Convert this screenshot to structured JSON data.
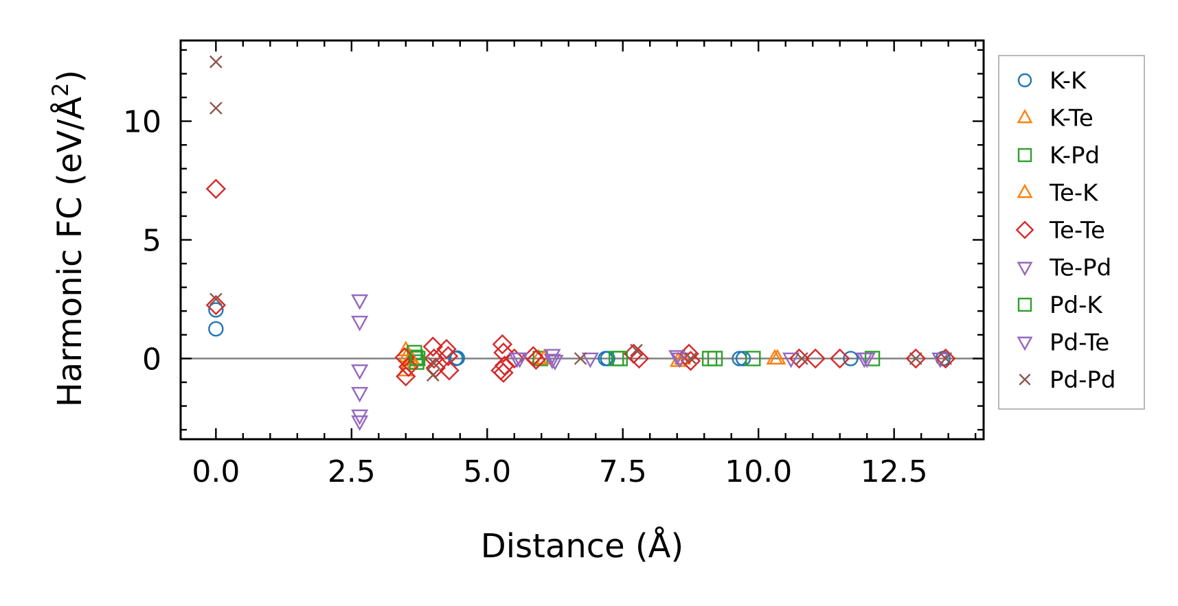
{
  "chart_data": {
    "type": "scatter",
    "title": "",
    "xlabel": "Distance (Å)",
    "ylabel_main": "Harmonic FC (eV/Å",
    "ylabel_sup": "2",
    "ylabel_close": ")",
    "xlim": [
      -0.65,
      14.15
    ],
    "ylim": [
      -3.4,
      13.4
    ],
    "xticks": [
      0.0,
      2.5,
      5.0,
      7.5,
      10.0,
      12.5
    ],
    "xtick_labels": [
      "0.0",
      "2.5",
      "5.0",
      "7.5",
      "10.0",
      "12.5"
    ],
    "yticks": [
      0,
      5,
      10
    ],
    "ytick_labels": [
      "0",
      "5",
      "10"
    ],
    "zero_line": 0,
    "legend_position": "outside-right",
    "series": [
      {
        "name": "K-K",
        "color": "#1f77b4",
        "marker": "circle",
        "points": [
          [
            0.0,
            2.05
          ],
          [
            0.0,
            1.25
          ],
          [
            4.42,
            0.0
          ],
          [
            4.45,
            0.02
          ],
          [
            7.18,
            0.0
          ],
          [
            7.22,
            0.0
          ],
          [
            9.65,
            0.0
          ],
          [
            9.72,
            0.0
          ],
          [
            11.7,
            0.0
          ],
          [
            13.4,
            0.0
          ]
        ]
      },
      {
        "name": "K-Te",
        "color": "#ff7f0e",
        "marker": "triangle-up",
        "points": [
          [
            3.5,
            0.35
          ],
          [
            3.52,
            0.1
          ],
          [
            3.55,
            -0.2
          ],
          [
            3.5,
            -0.5
          ],
          [
            3.6,
            0.0
          ],
          [
            5.95,
            0.0
          ],
          [
            8.52,
            -0.1
          ],
          [
            10.3,
            0.0
          ]
        ]
      },
      {
        "name": "K-Pd",
        "color": "#2ca02c",
        "marker": "square",
        "points": [
          [
            3.68,
            0.05
          ],
          [
            3.7,
            -0.15
          ],
          [
            3.66,
            0.25
          ],
          [
            5.98,
            0.0
          ],
          [
            7.38,
            0.0
          ],
          [
            9.1,
            0.0
          ],
          [
            9.9,
            0.0
          ],
          [
            12.1,
            0.0
          ]
        ]
      },
      {
        "name": "Te-K",
        "color": "#ff7f0e",
        "marker": "triangle-up",
        "points": [
          [
            3.58,
            0.0
          ],
          [
            6.05,
            0.0
          ],
          [
            8.6,
            0.0
          ],
          [
            10.35,
            0.0
          ]
        ]
      },
      {
        "name": "Te-Te",
        "color": "#d62728",
        "marker": "diamond",
        "points": [
          [
            0.0,
            7.15
          ],
          [
            0.0,
            2.25
          ],
          [
            3.48,
            0.05
          ],
          [
            3.5,
            -0.75
          ],
          [
            3.55,
            -0.35
          ],
          [
            4.0,
            0.5
          ],
          [
            4.02,
            0.0
          ],
          [
            4.05,
            -0.4
          ],
          [
            4.25,
            0.4
          ],
          [
            4.3,
            -0.5
          ],
          [
            4.28,
            0.1
          ],
          [
            5.28,
            0.6
          ],
          [
            5.3,
            0.25
          ],
          [
            5.25,
            -0.5
          ],
          [
            5.3,
            -0.6
          ],
          [
            5.32,
            -0.3
          ],
          [
            5.5,
            0.0
          ],
          [
            5.85,
            0.1
          ],
          [
            5.9,
            -0.05
          ],
          [
            7.7,
            0.2
          ],
          [
            7.8,
            0.0
          ],
          [
            8.72,
            0.2
          ],
          [
            8.75,
            -0.1
          ],
          [
            10.75,
            0.0
          ],
          [
            11.05,
            0.0
          ],
          [
            11.5,
            0.0
          ],
          [
            12.9,
            0.0
          ],
          [
            13.45,
            0.0
          ]
        ]
      },
      {
        "name": "Te-Pd",
        "color": "#9467bd",
        "marker": "triangle-down",
        "points": [
          [
            2.65,
            2.45
          ],
          [
            2.65,
            1.55
          ],
          [
            2.65,
            -0.5
          ],
          [
            2.65,
            -1.45
          ],
          [
            2.65,
            -2.4
          ],
          [
            2.65,
            -2.65
          ],
          [
            5.55,
            0.0
          ],
          [
            6.2,
            0.15
          ],
          [
            6.25,
            -0.1
          ],
          [
            8.5,
            0.1
          ],
          [
            11.95,
            0.0
          ],
          [
            13.35,
            0.0
          ]
        ]
      },
      {
        "name": "Pd-K",
        "color": "#2ca02c",
        "marker": "square",
        "points": [
          [
            3.72,
            0.0
          ],
          [
            7.45,
            0.0
          ],
          [
            9.2,
            0.0
          ]
        ]
      },
      {
        "name": "Pd-Te",
        "color": "#9467bd",
        "marker": "triangle-down",
        "points": [
          [
            5.6,
            0.0
          ],
          [
            6.2,
            -0.05
          ],
          [
            6.9,
            0.0
          ],
          [
            8.55,
            0.0
          ],
          [
            10.6,
            0.0
          ],
          [
            12.0,
            0.0
          ]
        ]
      },
      {
        "name": "Pd-Pd",
        "color": "#8c564b",
        "marker": "x",
        "points": [
          [
            0.0,
            12.5
          ],
          [
            0.0,
            10.55
          ],
          [
            0.0,
            2.5
          ],
          [
            4.0,
            -0.7
          ],
          [
            4.02,
            -0.2
          ],
          [
            6.72,
            0.0
          ],
          [
            7.75,
            0.35
          ],
          [
            8.75,
            0.0
          ],
          [
            10.8,
            0.0
          ],
          [
            12.9,
            0.0
          ],
          [
            13.45,
            0.0
          ]
        ]
      }
    ]
  }
}
